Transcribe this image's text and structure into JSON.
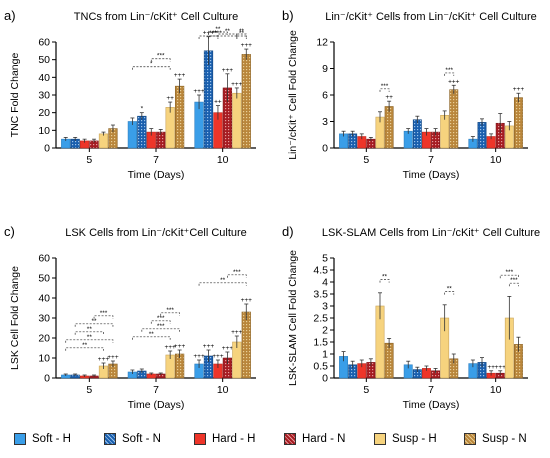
{
  "legend": [
    {
      "label": "Soft - H",
      "color": "#3a9ee8",
      "pattern": false
    },
    {
      "label": "Soft - N",
      "color": "#1a5fae",
      "pattern": true
    },
    {
      "label": "Hard - H",
      "color": "#ee3529",
      "pattern": false
    },
    {
      "label": "Hard - N",
      "color": "#a61c22",
      "pattern": true
    },
    {
      "label": "Susp - H",
      "color": "#f6d37e",
      "pattern": false
    },
    {
      "label": "Susp - N",
      "color": "#b9863b",
      "pattern": true
    }
  ],
  "chart_data": [
    {
      "panel_label": "a)",
      "type": "bar",
      "title": "TNCs from Lin⁻/cKit⁺ Cell Culture",
      "xlabel": "Time (Days)",
      "ylabel": "TNC Fold Change",
      "categories": [
        "5",
        "7",
        "10"
      ],
      "ylim": [
        0,
        60
      ],
      "yticks": [
        0,
        10,
        20,
        30,
        40,
        50,
        60
      ],
      "yticklabels": [
        "0",
        "10",
        "20",
        "30",
        "40",
        "50",
        "60"
      ],
      "series": [
        {
          "name": "Soft - H",
          "values": [
            5,
            15,
            26
          ],
          "errors": [
            1,
            2,
            4
          ],
          "annotations": [
            "",
            "",
            "+++"
          ]
        },
        {
          "name": "Soft - N",
          "values": [
            5,
            18,
            55
          ],
          "errors": [
            1,
            2,
            8
          ],
          "annotations": [
            "",
            "*",
            "+++"
          ]
        },
        {
          "name": "Hard - H",
          "values": [
            4,
            9,
            20
          ],
          "errors": [
            1,
            2,
            4
          ],
          "annotations": [
            "",
            "",
            "++"
          ]
        },
        {
          "name": "Hard - N",
          "values": [
            4,
            9,
            34
          ],
          "errors": [
            1,
            1.5,
            8
          ],
          "annotations": [
            "",
            "",
            "+++"
          ]
        },
        {
          "name": "Susp - H",
          "values": [
            8,
            23,
            31
          ],
          "errors": [
            1,
            3,
            3
          ],
          "annotations": [
            "",
            "++",
            "+++"
          ]
        },
        {
          "name": "Susp - N",
          "values": [
            11,
            35,
            53
          ],
          "errors": [
            2,
            4,
            3
          ],
          "annotations": [
            "",
            "+++",
            "+++"
          ]
        }
      ],
      "comparisons": [
        {
          "group": 1,
          "from": 0,
          "to": 4,
          "text": "*",
          "level": 0
        },
        {
          "group": 1,
          "from": 2,
          "to": 4,
          "text": "***",
          "level": 1
        },
        {
          "group": 2,
          "from": 0,
          "to": 4,
          "text": "***",
          "level": 0
        },
        {
          "group": 2,
          "from": 2,
          "to": 4,
          "text": "**",
          "level": 2
        },
        {
          "group": 2,
          "from": 4,
          "to": 5,
          "text": "**",
          "level": 2
        },
        {
          "group": 2,
          "from": 1,
          "to": 3,
          "text": "**",
          "level": 1
        },
        {
          "group": 2,
          "from": 1,
          "to": 2,
          "text": "***",
          "level": 3
        },
        {
          "group": 2,
          "from": 4,
          "to": 5,
          "text": "**",
          "level": 0
        }
      ]
    },
    {
      "panel_label": "b)",
      "type": "bar",
      "title": "Lin⁻/cKit⁺ Cells from Lin⁻/cKit⁺ Cell Culture",
      "xlabel": "Time (Days)",
      "ylabel": "Lin⁻/cKit⁺ Cell Fold Change",
      "categories": [
        "5",
        "7",
        "10"
      ],
      "ylim": [
        0,
        12
      ],
      "yticks": [
        0,
        3,
        6,
        9,
        12
      ],
      "yticklabels": [
        "0",
        "3",
        "6",
        "9",
        "12"
      ],
      "series": [
        {
          "name": "Soft - H",
          "values": [
            1.6,
            1.9,
            1.0
          ],
          "errors": [
            0.3,
            0.3,
            0.3
          ],
          "annotations": [
            "",
            "",
            ""
          ]
        },
        {
          "name": "Soft - N",
          "values": [
            1.6,
            3.2,
            2.9
          ],
          "errors": [
            0.3,
            0.4,
            0.4
          ],
          "annotations": [
            "",
            "",
            ""
          ]
        },
        {
          "name": "Hard - H",
          "values": [
            1.3,
            1.8,
            1.3
          ],
          "errors": [
            0.3,
            0.4,
            0.3
          ],
          "annotations": [
            "",
            "",
            ""
          ]
        },
        {
          "name": "Hard - N",
          "values": [
            1.0,
            1.8,
            2.8
          ],
          "errors": [
            0.2,
            0.4,
            1.1
          ],
          "annotations": [
            "",
            "",
            ""
          ]
        },
        {
          "name": "Susp - H",
          "values": [
            3.5,
            3.7,
            2.5
          ],
          "errors": [
            0.6,
            0.5,
            0.5
          ],
          "annotations": [
            "",
            "",
            ""
          ]
        },
        {
          "name": "Susp - N",
          "values": [
            4.7,
            6.6,
            5.7
          ],
          "errors": [
            0.6,
            0.5,
            0.5
          ],
          "annotations": [
            "++",
            "+++",
            "+++"
          ]
        }
      ],
      "comparisons": [
        {
          "group": 0,
          "from": 4,
          "to": 5,
          "text": "***",
          "level": 0
        },
        {
          "group": 1,
          "from": 4,
          "to": 5,
          "text": "***",
          "level": 0
        }
      ]
    },
    {
      "panel_label": "c)",
      "type": "bar",
      "title": "LSK Cells from Lin⁻/cKit⁺Cell Culture",
      "xlabel": "Time (Days)",
      "ylabel": "LSK Cell Fold Change",
      "categories": [
        "5",
        "7",
        "10"
      ],
      "ylim": [
        0,
        60
      ],
      "yticks": [
        0,
        10,
        20,
        30,
        40,
        50,
        60
      ],
      "yticklabels": [
        "0",
        "10",
        "20",
        "30",
        "40",
        "50",
        "60"
      ],
      "series": [
        {
          "name": "Soft - H",
          "values": [
            1.5,
            3,
            7
          ],
          "errors": [
            0.5,
            1,
            2
          ],
          "annotations": [
            "",
            "",
            "+++"
          ]
        },
        {
          "name": "Soft - N",
          "values": [
            1.5,
            3.5,
            11
          ],
          "errors": [
            0.5,
            1,
            3
          ],
          "annotations": [
            "",
            "",
            "+++"
          ]
        },
        {
          "name": "Hard - H",
          "values": [
            1,
            2,
            7
          ],
          "errors": [
            0.5,
            0.5,
            2
          ],
          "annotations": [
            "",
            "",
            "+++"
          ]
        },
        {
          "name": "Hard - N",
          "values": [
            1,
            2,
            10
          ],
          "errors": [
            0.5,
            0.5,
            3
          ],
          "annotations": [
            "",
            "",
            "+++"
          ]
        },
        {
          "name": "Susp - H",
          "values": [
            6,
            11.5,
            18
          ],
          "errors": [
            1.5,
            2,
            3
          ],
          "annotations": [
            "+++",
            "+++",
            "+++"
          ]
        },
        {
          "name": "Susp - N",
          "values": [
            7,
            12,
            33
          ],
          "errors": [
            1.5,
            2,
            4
          ],
          "annotations": [
            "+++",
            "+++",
            "+++"
          ]
        }
      ],
      "comparisons": [
        {
          "group": 0,
          "from": 0,
          "to": 4,
          "text": "**",
          "level": 0
        },
        {
          "group": 0,
          "from": 0,
          "to": 5,
          "text": "**",
          "level": 1
        },
        {
          "group": 0,
          "from": 1,
          "to": 4,
          "text": "**",
          "level": 2
        },
        {
          "group": 0,
          "from": 1,
          "to": 5,
          "text": "**",
          "level": 3
        },
        {
          "group": 0,
          "from": 3,
          "to": 5,
          "text": "***",
          "level": 4
        },
        {
          "group": 1,
          "from": 0,
          "to": 4,
          "text": "**",
          "level": 0
        },
        {
          "group": 1,
          "from": 1,
          "to": 5,
          "text": "***",
          "level": 1
        },
        {
          "group": 1,
          "from": 2,
          "to": 4,
          "text": "***",
          "level": 2
        },
        {
          "group": 1,
          "from": 3,
          "to": 5,
          "text": "***",
          "level": 3
        },
        {
          "group": 2,
          "from": 0,
          "to": 5,
          "text": "**",
          "level": 1
        },
        {
          "group": 2,
          "from": 3,
          "to": 5,
          "text": "***",
          "level": 2
        }
      ]
    },
    {
      "panel_label": "d)",
      "type": "bar",
      "title": "LSK-SLAM Cells from Lin⁻/cKit⁺ Cell Culture",
      "xlabel": "Time (Days)",
      "ylabel": "LSK-SLAM Cell Fold Change",
      "categories": [
        "5",
        "7",
        "10"
      ],
      "ylim": [
        0,
        5
      ],
      "yticks": [
        0,
        0.5,
        1,
        1.5,
        2,
        2.5,
        3,
        3.5,
        4,
        4.5,
        5
      ],
      "yticklabels": [
        "0",
        "0.5",
        "1",
        "1.5",
        "2",
        "2.5",
        "3",
        "3.5",
        "4",
        "4.5",
        "5"
      ],
      "series": [
        {
          "name": "Soft - H",
          "values": [
            0.9,
            0.55,
            0.6
          ],
          "errors": [
            0.2,
            0.15,
            0.15
          ],
          "annotations": [
            "",
            "",
            ""
          ]
        },
        {
          "name": "Soft - N",
          "values": [
            0.55,
            0.35,
            0.65
          ],
          "errors": [
            0.15,
            0.1,
            0.2
          ],
          "annotations": [
            "",
            "",
            ""
          ]
        },
        {
          "name": "Hard - H",
          "values": [
            0.6,
            0.4,
            0.2
          ],
          "errors": [
            0.15,
            0.1,
            0.1
          ],
          "annotations": [
            "",
            "",
            "++"
          ]
        },
        {
          "name": "Hard - N",
          "values": [
            0.65,
            0.3,
            0.2
          ],
          "errors": [
            0.15,
            0.1,
            0.1
          ],
          "annotations": [
            "",
            "",
            "+++"
          ]
        },
        {
          "name": "Susp - H",
          "values": [
            3.0,
            2.5,
            2.5
          ],
          "errors": [
            0.55,
            0.55,
            0.9
          ],
          "annotations": [
            "",
            "",
            ""
          ]
        },
        {
          "name": "Susp - N",
          "values": [
            1.45,
            0.8,
            1.4
          ],
          "errors": [
            0.2,
            0.2,
            0.3
          ],
          "annotations": [
            "",
            "",
            ""
          ]
        }
      ],
      "comparisons": [
        {
          "group": 0,
          "from": 4,
          "to": 5,
          "text": "**",
          "level": 0
        },
        {
          "group": 1,
          "from": 4,
          "to": 5,
          "text": "**",
          "level": 0
        },
        {
          "group": 2,
          "from": 4,
          "to": 5,
          "text": "***",
          "level": 0
        },
        {
          "group": 2,
          "from": 3,
          "to": 5,
          "text": "***",
          "level": 1
        }
      ]
    }
  ]
}
